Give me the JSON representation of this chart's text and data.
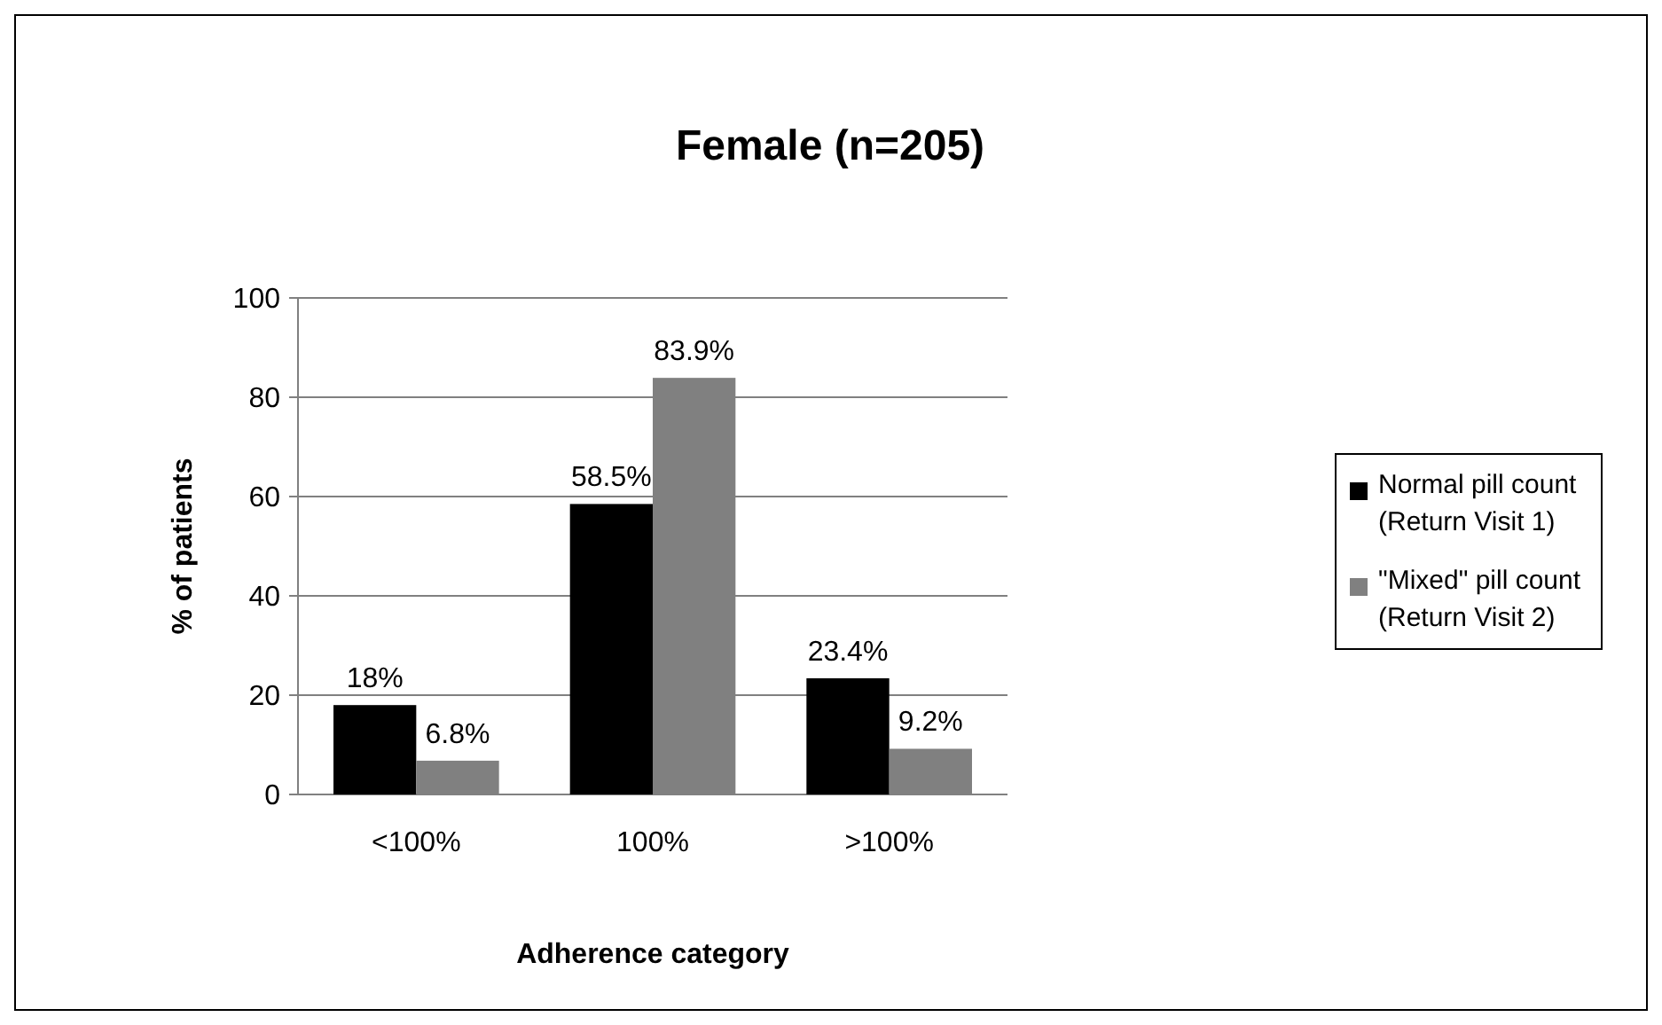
{
  "chart_data": {
    "type": "bar",
    "title": "Female (n=205)",
    "xlabel": "Adherence category",
    "ylabel": "% of patients",
    "categories": [
      "<100%",
      "100%",
      ">100%"
    ],
    "series": [
      {
        "name": "Normal pill count (Return Visit 1)",
        "color": "#000000",
        "values": [
          18,
          58.5,
          23.4
        ],
        "value_labels": [
          "18%",
          "58.5%",
          "23.4%"
        ]
      },
      {
        "name": "\"Mixed\" pill count (Return Visit 2)",
        "color": "#808080",
        "values": [
          6.8,
          83.9,
          9.2
        ],
        "value_labels": [
          "6.8%",
          "83.9%",
          "9.2%"
        ]
      }
    ],
    "ylim": [
      0,
      100
    ],
    "yticks": [
      0,
      20,
      40,
      60,
      80,
      100
    ],
    "grid": "y",
    "legend": "right"
  }
}
